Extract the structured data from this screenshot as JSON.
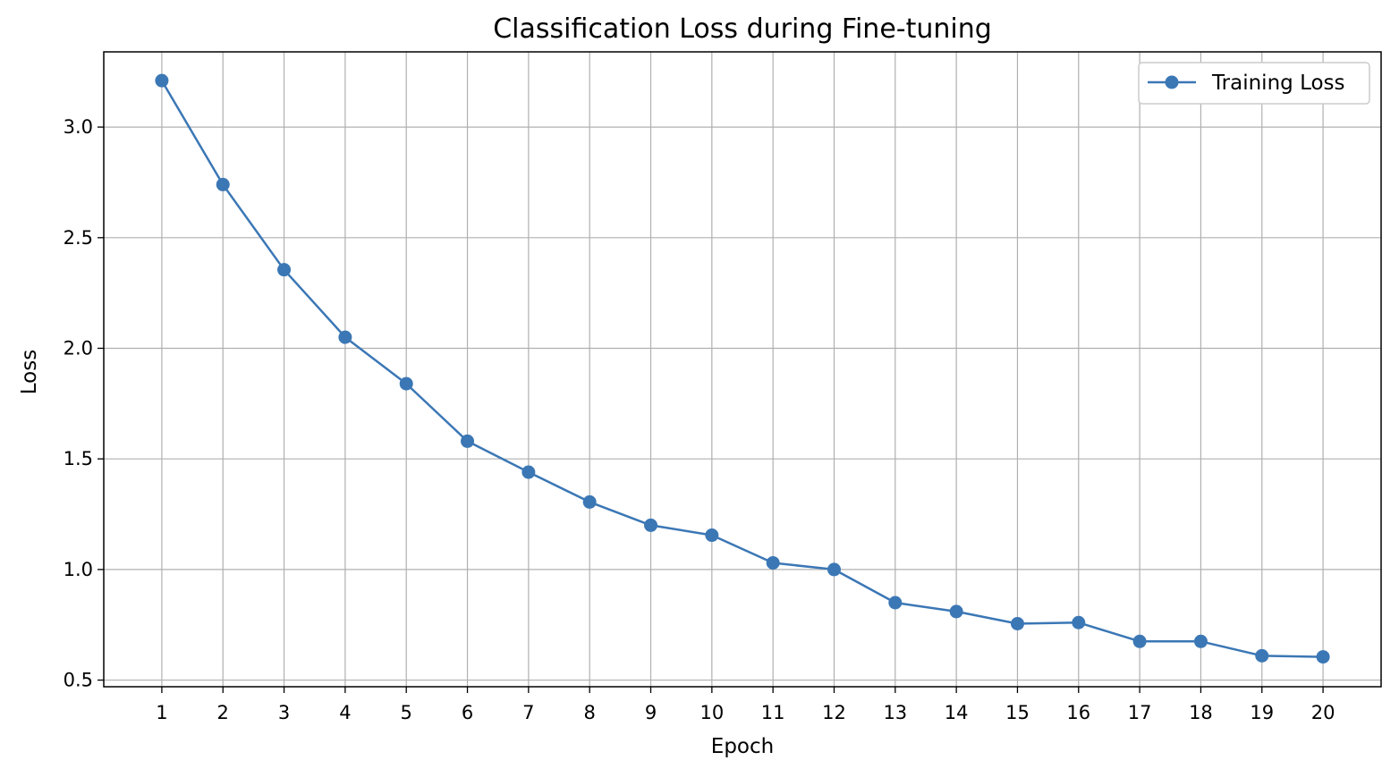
{
  "chart_data": {
    "type": "line",
    "title": "Classification Loss during Fine-tuning",
    "xlabel": "Epoch",
    "ylabel": "Loss",
    "x": [
      1,
      2,
      3,
      4,
      5,
      6,
      7,
      8,
      9,
      10,
      11,
      12,
      13,
      14,
      15,
      16,
      17,
      18,
      19,
      20
    ],
    "xticks": [
      "1",
      "2",
      "3",
      "4",
      "5",
      "6",
      "7",
      "8",
      "9",
      "10",
      "11",
      "12",
      "13",
      "14",
      "15",
      "16",
      "17",
      "18",
      "19",
      "20"
    ],
    "yticks": [
      "0.5",
      "1.0",
      "1.5",
      "2.0",
      "2.5",
      "3.0"
    ],
    "ylim": [
      0.47,
      3.34
    ],
    "xlim": [
      0.05,
      20.95
    ],
    "grid": true,
    "legend_position": "top-right",
    "series": [
      {
        "name": "Training Loss",
        "color": "#3b77b5",
        "marker": "circle",
        "values": [
          3.21,
          2.74,
          2.355,
          2.05,
          1.84,
          1.58,
          1.44,
          1.305,
          1.2,
          1.155,
          1.03,
          1.0,
          0.85,
          0.81,
          0.755,
          0.76,
          0.675,
          0.675,
          0.61,
          0.605
        ]
      }
    ]
  }
}
